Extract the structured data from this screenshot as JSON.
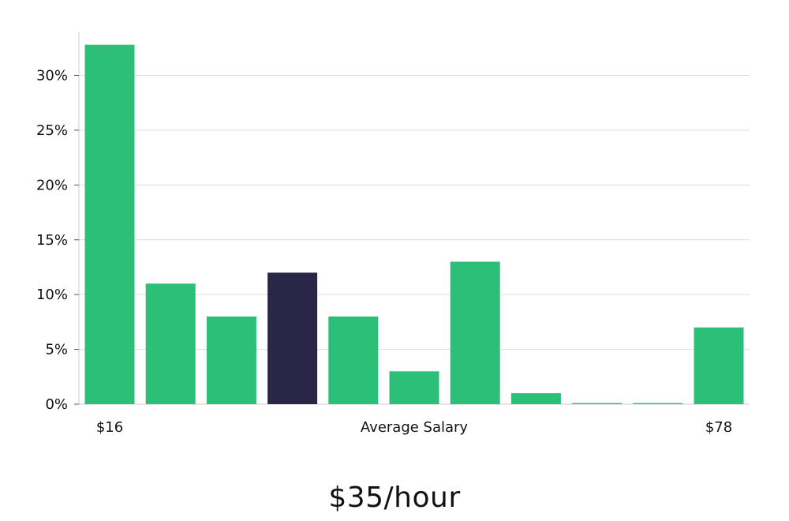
{
  "chart_data": {
    "type": "bar",
    "title": "",
    "ylabel": "",
    "xlabel": "Average Salary",
    "x_range_labels": {
      "min": "$16",
      "max": "$78"
    },
    "ylim": [
      0,
      34
    ],
    "yticks": [
      0,
      5,
      10,
      15,
      20,
      25,
      30
    ],
    "ytick_format": "{v}%",
    "grid": true,
    "values": [
      32.8,
      11,
      8,
      12,
      8,
      3,
      13,
      1,
      0.1,
      0.1,
      7
    ],
    "highlight_index": 3,
    "colors": {
      "bar": "#2bbf78",
      "highlight": "#2a2647",
      "grid": "#dddddd",
      "axis": "#cccccc"
    }
  },
  "summary": {
    "value": "$35/hour"
  }
}
